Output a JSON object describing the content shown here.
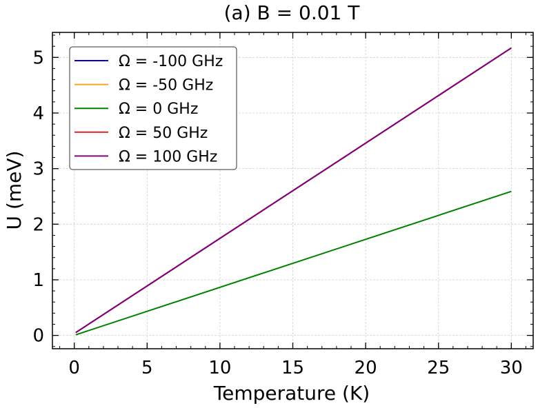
{
  "chart_data": {
    "type": "line",
    "title": "(a) B = 0.01 T",
    "xlabel": "Temperature (K)",
    "ylabel": "U (meV)",
    "xlim": [
      -1.5,
      31.5
    ],
    "ylim": [
      -0.24,
      5.45
    ],
    "xticks": [
      0,
      5,
      10,
      15,
      20,
      25,
      30
    ],
    "yticks": [
      0,
      1,
      2,
      3,
      4,
      5
    ],
    "xtick_labels": [
      "0",
      "5",
      "10",
      "15",
      "20",
      "25",
      "30"
    ],
    "ytick_labels": [
      "0",
      "1",
      "2",
      "3",
      "4",
      "5"
    ],
    "grid": true,
    "legend_position": "upper-left",
    "series": [
      {
        "name": "Ω = -100 GHz",
        "color": "#0000cc",
        "x": [
          0.1,
          30
        ],
        "y": [
          0.05,
          5.17
        ]
      },
      {
        "name": "Ω = -50 GHz",
        "color": "#f5a623",
        "x": [
          0.1,
          30
        ],
        "y": [
          0.05,
          5.17
        ]
      },
      {
        "name": "Ω = 0 GHz",
        "color": "#008000",
        "x": [
          0.1,
          30
        ],
        "y": [
          0.01,
          2.59
        ]
      },
      {
        "name": "Ω = 50 GHz",
        "color": "#d62728",
        "x": [
          0.1,
          30
        ],
        "y": [
          0.05,
          5.17
        ]
      },
      {
        "name": "Ω = 100 GHz",
        "color": "#800080",
        "x": [
          0.1,
          30
        ],
        "y": [
          0.05,
          5.17
        ]
      }
    ]
  }
}
